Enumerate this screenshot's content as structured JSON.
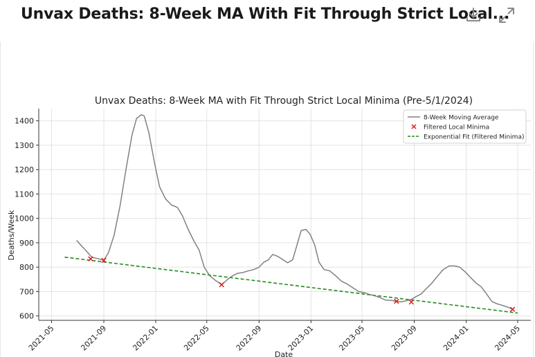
{
  "header": {
    "title": "Unvax Deaths: 8-Week MA With Fit Through Strict Local...",
    "download_icon": "download-icon",
    "expand_icon": "expand-icon"
  },
  "chart_data": {
    "type": "line",
    "title": "Unvax Deaths: 8-Week MA with Fit Through Strict Local Minima (Pre-5/1/2024)",
    "xlabel": "Date",
    "ylabel": "Deaths/Week",
    "xlim": [
      "2021-04-01",
      "2024-06-01"
    ],
    "ylim": [
      582,
      1450
    ],
    "x_ticks": [
      "2021-05",
      "2021-09",
      "2022-01",
      "2022-05",
      "2022-09",
      "2023-01",
      "2023-05",
      "2023-09",
      "2024-01",
      "2024-05"
    ],
    "y_ticks": [
      600,
      700,
      800,
      900,
      1000,
      1100,
      1200,
      1300,
      1400
    ],
    "grid": true,
    "legend_position": "top-right",
    "legend": [
      "8-Week Moving Average",
      "Filtered Local Minima",
      "Exponential Fit (Filtered Minima)"
    ],
    "series": [
      {
        "name": "8-Week Moving Average",
        "style": "line",
        "color": "#808080",
        "x": [
          "2021-06-29",
          "2021-07-09",
          "2021-07-20",
          "2021-08-04",
          "2021-08-18",
          "2021-09-01",
          "2021-09-12",
          "2021-09-25",
          "2021-10-09",
          "2021-10-23",
          "2021-11-06",
          "2021-11-17",
          "2021-11-28",
          "2021-12-05",
          "2021-12-16",
          "2021-12-30",
          "2022-01-10",
          "2022-01-24",
          "2022-02-07",
          "2022-02-21",
          "2022-03-05",
          "2022-03-17",
          "2022-03-31",
          "2022-04-13",
          "2022-04-25",
          "2022-05-08",
          "2022-05-22",
          "2022-06-05",
          "2022-06-19",
          "2022-07-01",
          "2022-07-13",
          "2022-07-25",
          "2022-08-07",
          "2022-08-19",
          "2022-09-01",
          "2022-09-12",
          "2022-09-23",
          "2022-10-03",
          "2022-10-14",
          "2022-10-26",
          "2022-11-07",
          "2022-11-19",
          "2022-11-29",
          "2022-12-09",
          "2022-12-20",
          "2022-12-30",
          "2023-01-10",
          "2023-01-20",
          "2023-02-01",
          "2023-02-14",
          "2023-02-28",
          "2023-03-14",
          "2023-03-28",
          "2023-04-10",
          "2023-04-23",
          "2023-05-07",
          "2023-05-19",
          "2023-06-01",
          "2023-06-13",
          "2023-06-25",
          "2023-07-08",
          "2023-07-21",
          "2023-08-01",
          "2023-08-13",
          "2023-08-25",
          "2023-09-06",
          "2023-09-17",
          "2023-09-28",
          "2023-10-10",
          "2023-10-24",
          "2023-11-08",
          "2023-11-22",
          "2023-12-05",
          "2023-12-17",
          "2023-12-30",
          "2024-01-10",
          "2024-01-24",
          "2024-02-05",
          "2024-02-18",
          "2024-03-01",
          "2024-03-13",
          "2024-03-23",
          "2024-04-06",
          "2024-04-19"
        ],
        "values": [
          910,
          890,
          870,
          840,
          835,
          828,
          860,
          930,
          1050,
          1200,
          1340,
          1410,
          1425,
          1420,
          1350,
          1220,
          1130,
          1080,
          1055,
          1045,
          1010,
          960,
          910,
          870,
          800,
          765,
          745,
          728,
          750,
          765,
          775,
          778,
          785,
          790,
          800,
          820,
          830,
          852,
          845,
          832,
          818,
          830,
          890,
          950,
          955,
          935,
          890,
          820,
          790,
          785,
          765,
          742,
          730,
          715,
          700,
          695,
          688,
          682,
          675,
          665,
          664,
          660,
          658,
          662,
          668,
          680,
          690,
          710,
          730,
          760,
          790,
          805,
          805,
          800,
          780,
          760,
          735,
          720,
          690,
          660,
          650,
          645,
          637,
          628
        ]
      },
      {
        "name": "Filtered Local Minima",
        "style": "scatter",
        "color": "#e31a1c",
        "x": [
          "2021-08-01",
          "2021-09-01",
          "2022-06-05",
          "2023-07-21",
          "2023-08-25",
          "2024-04-19"
        ],
        "values": [
          834,
          828,
          728,
          660,
          657,
          627
        ]
      },
      {
        "name": "Exponential Fit (Filtered Minima)",
        "style": "dashed-line",
        "color": "#1e8c1e",
        "x": [
          "2021-06-01",
          "2024-05-01"
        ],
        "values": [
          841,
          612
        ]
      }
    ]
  }
}
